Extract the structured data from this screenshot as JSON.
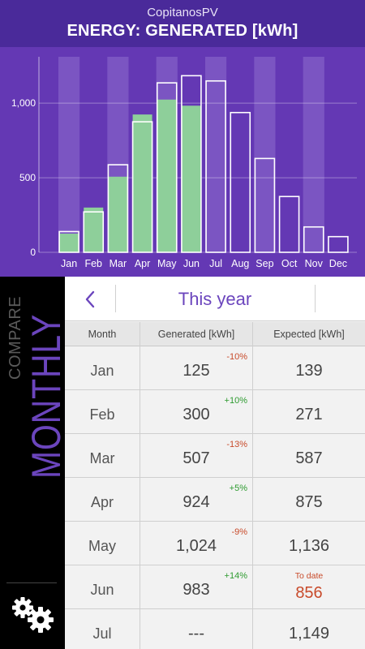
{
  "header": {
    "app_name": "CopitanosPV",
    "title": "ENERGY: GENERATED [kWh]"
  },
  "chart_data": {
    "type": "bar",
    "categories": [
      "Jan",
      "Feb",
      "Mar",
      "Apr",
      "May",
      "Jun",
      "Jul",
      "Aug",
      "Sep",
      "Oct",
      "Nov",
      "Dec"
    ],
    "series": [
      {
        "values": [
          125,
          300,
          507,
          924,
          1024,
          983,
          null,
          null,
          null,
          null,
          null,
          null
        ]
      },
      {
        "values": [
          139,
          271,
          587,
          875,
          1136,
          1184,
          1149,
          937,
          629,
          374,
          170,
          105
        ]
      }
    ],
    "y_ticks": [
      "0",
      "500",
      "1,000"
    ],
    "ylim": [
      0,
      1300
    ],
    "grid": true,
    "colors": {
      "generated": "#8ecf9a",
      "expected_outline": "#ffffff",
      "shade": "#7b55c2"
    }
  },
  "sidebar": {
    "compare_label": "COMPARE",
    "monthly_label": "MONTHLY",
    "settings_icon": "gears-icon"
  },
  "table": {
    "back_icon": "chevron-left-icon",
    "period": "This year",
    "headers": {
      "month": "Month",
      "generated": "Generated [kWh]",
      "expected": "Expected [kWh]"
    },
    "rows": [
      {
        "month": "Jan",
        "generated": "125",
        "diff": "-10%",
        "expected": "139"
      },
      {
        "month": "Feb",
        "generated": "300",
        "diff": "+10%",
        "expected": "271"
      },
      {
        "month": "Mar",
        "generated": "507",
        "diff": "-13%",
        "expected": "587"
      },
      {
        "month": "Apr",
        "generated": "924",
        "diff": "+5%",
        "expected": "875"
      },
      {
        "month": "May",
        "generated": "1,024",
        "diff": "-9%",
        "expected": "1,136"
      },
      {
        "month": "Jun",
        "generated": "983",
        "diff": "+14%",
        "expected": "856",
        "expected_note": "To date"
      },
      {
        "month": "Jul",
        "generated": "---",
        "diff": "",
        "expected": "1,149"
      }
    ],
    "colors": {
      "negative": "#c84a2a",
      "positive": "#2e9b30",
      "accent": "#6b45bd"
    }
  }
}
